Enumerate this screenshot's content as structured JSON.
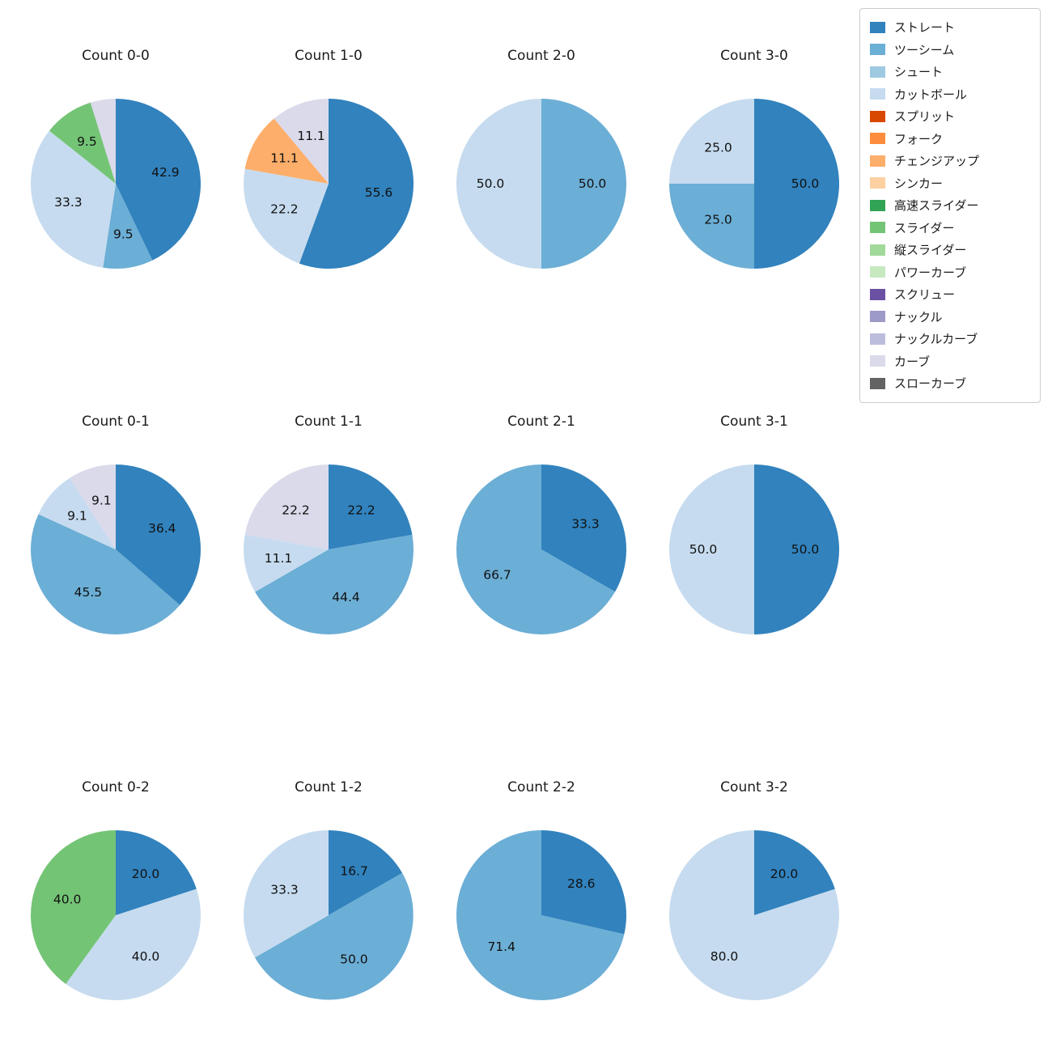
{
  "figure": {
    "background": "#ffffff"
  },
  "legend": {
    "items": [
      {
        "label": "ストレート",
        "color": "#3182bd"
      },
      {
        "label": "ツーシーム",
        "color": "#6baed6"
      },
      {
        "label": "シュート",
        "color": "#9ecae1"
      },
      {
        "label": "カットボール",
        "color": "#c6dbef"
      },
      {
        "label": "スプリット",
        "color": "#d94801"
      },
      {
        "label": "フォーク",
        "color": "#fd8d3c"
      },
      {
        "label": "チェンジアップ",
        "color": "#fdae6b"
      },
      {
        "label": "シンカー",
        "color": "#fdd0a2"
      },
      {
        "label": "高速スライダー",
        "color": "#31a354"
      },
      {
        "label": "スライダー",
        "color": "#74c476"
      },
      {
        "label": "縦スライダー",
        "color": "#a1d99b"
      },
      {
        "label": "パワーカーブ",
        "color": "#c7e9c0"
      },
      {
        "label": "スクリュー",
        "color": "#6a51a3"
      },
      {
        "label": "ナックル",
        "color": "#9e9ac8"
      },
      {
        "label": "ナックルカーブ",
        "color": "#bcbddc"
      },
      {
        "label": "カーブ",
        "color": "#dadaeb"
      },
      {
        "label": "スローカーブ",
        "color": "#636363"
      }
    ]
  },
  "chart_data": [
    {
      "type": "pie",
      "title": "Count 0-0",
      "slices": [
        {
          "label": "ストレート",
          "value": 42.9,
          "text": "42.9"
        },
        {
          "label": "ツーシーム",
          "value": 9.5,
          "text": "9.5"
        },
        {
          "label": "カットボール",
          "value": 33.3,
          "text": "33.3"
        },
        {
          "label": "スライダー",
          "value": 9.5,
          "text": "9.5"
        },
        {
          "label": "カーブ",
          "value": 4.8,
          "text": ""
        }
      ]
    },
    {
      "type": "pie",
      "title": "Count 1-0",
      "slices": [
        {
          "label": "ストレート",
          "value": 55.6,
          "text": "55.6"
        },
        {
          "label": "カットボール",
          "value": 22.2,
          "text": "22.2"
        },
        {
          "label": "チェンジアップ",
          "value": 11.1,
          "text": "11.1"
        },
        {
          "label": "カーブ",
          "value": 11.1,
          "text": "11.1"
        }
      ]
    },
    {
      "type": "pie",
      "title": "Count 2-0",
      "slices": [
        {
          "label": "ツーシーム",
          "value": 50.0,
          "text": "50.0"
        },
        {
          "label": "カットボール",
          "value": 50.0,
          "text": "50.0"
        }
      ]
    },
    {
      "type": "pie",
      "title": "Count 3-0",
      "slices": [
        {
          "label": "ストレート",
          "value": 50.0,
          "text": "50.0"
        },
        {
          "label": "ツーシーム",
          "value": 25.0,
          "text": "25.0"
        },
        {
          "label": "カットボール",
          "value": 25.0,
          "text": "25.0"
        }
      ]
    },
    {
      "type": "pie",
      "title": "Count 0-1",
      "slices": [
        {
          "label": "ストレート",
          "value": 36.4,
          "text": "36.4"
        },
        {
          "label": "ツーシーム",
          "value": 45.5,
          "text": "45.5"
        },
        {
          "label": "カットボール",
          "value": 9.1,
          "text": "9.1"
        },
        {
          "label": "カーブ",
          "value": 9.1,
          "text": "9.1"
        }
      ]
    },
    {
      "type": "pie",
      "title": "Count 1-1",
      "slices": [
        {
          "label": "ストレート",
          "value": 22.2,
          "text": "22.2"
        },
        {
          "label": "ツーシーム",
          "value": 44.4,
          "text": "44.4"
        },
        {
          "label": "カットボール",
          "value": 11.1,
          "text": "11.1"
        },
        {
          "label": "カーブ",
          "value": 22.2,
          "text": "22.2"
        }
      ]
    },
    {
      "type": "pie",
      "title": "Count 2-1",
      "slices": [
        {
          "label": "ストレート",
          "value": 33.3,
          "text": "33.3"
        },
        {
          "label": "ツーシーム",
          "value": 66.7,
          "text": "66.7"
        }
      ]
    },
    {
      "type": "pie",
      "title": "Count 3-1",
      "slices": [
        {
          "label": "ストレート",
          "value": 50.0,
          "text": "50.0"
        },
        {
          "label": "カットボール",
          "value": 50.0,
          "text": "50.0"
        }
      ]
    },
    {
      "type": "pie",
      "title": "Count 0-2",
      "slices": [
        {
          "label": "ストレート",
          "value": 20.0,
          "text": "20.0"
        },
        {
          "label": "カットボール",
          "value": 40.0,
          "text": "40.0"
        },
        {
          "label": "スライダー",
          "value": 40.0,
          "text": "40.0"
        }
      ]
    },
    {
      "type": "pie",
      "title": "Count 1-2",
      "slices": [
        {
          "label": "ストレート",
          "value": 16.7,
          "text": "16.7"
        },
        {
          "label": "ツーシーム",
          "value": 50.0,
          "text": "50.0"
        },
        {
          "label": "カットボール",
          "value": 33.3,
          "text": "33.3"
        }
      ]
    },
    {
      "type": "pie",
      "title": "Count 2-2",
      "slices": [
        {
          "label": "ストレート",
          "value": 28.6,
          "text": "28.6"
        },
        {
          "label": "ツーシーム",
          "value": 71.4,
          "text": "71.4"
        }
      ]
    },
    {
      "type": "pie",
      "title": "Count 3-2",
      "slices": [
        {
          "label": "ストレート",
          "value": 20.0,
          "text": "20.0"
        },
        {
          "label": "カットボール",
          "value": 80.0,
          "text": "80.0"
        }
      ]
    }
  ]
}
